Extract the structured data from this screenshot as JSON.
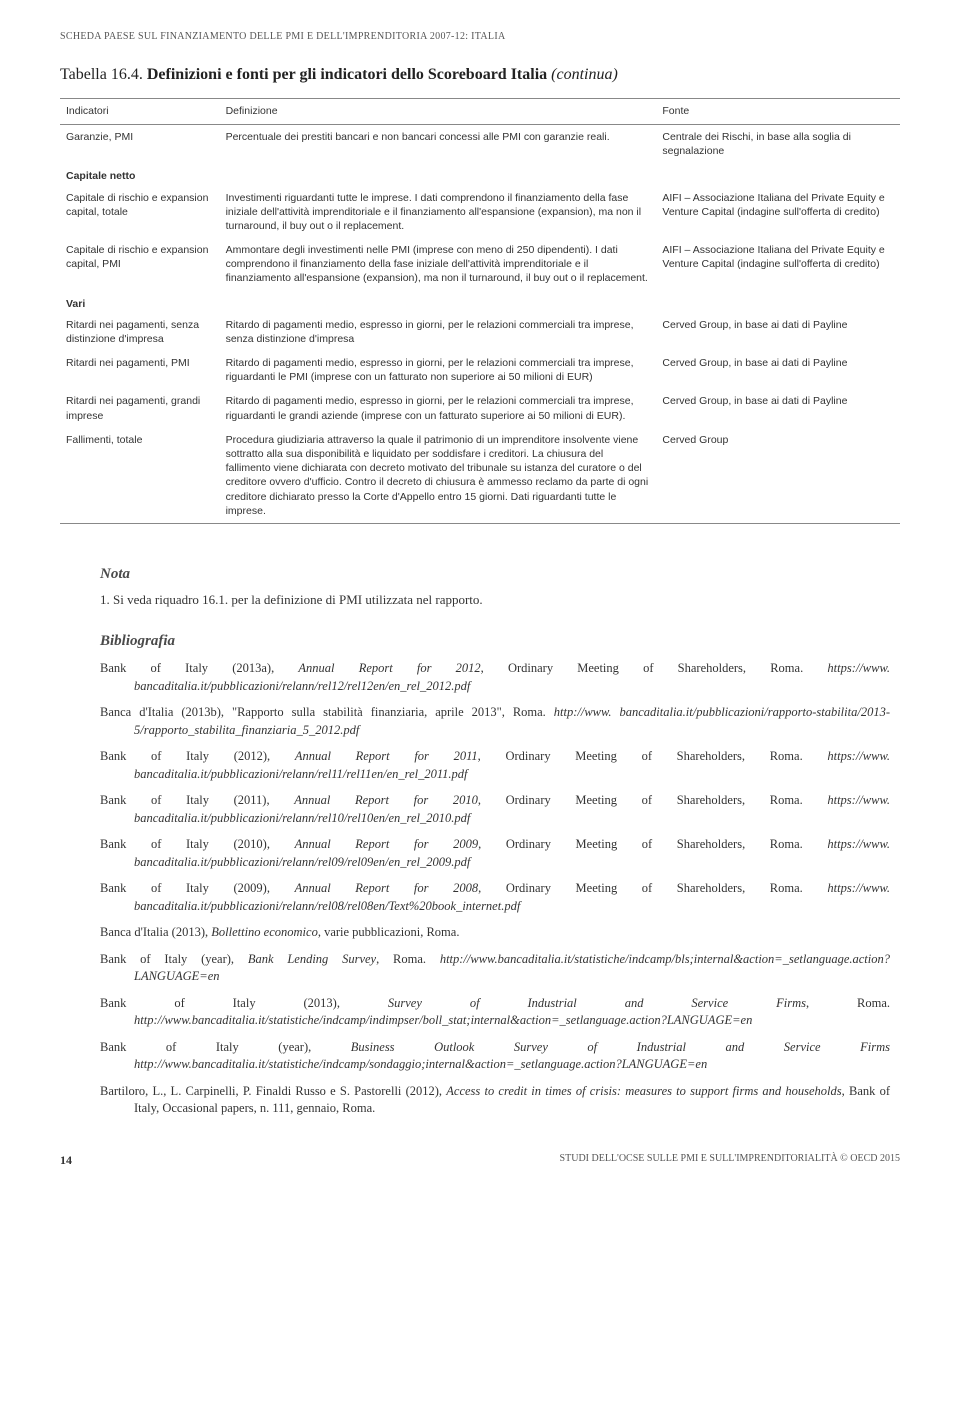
{
  "header": "SCHEDA PAESE SUL FINANZIAMENTO DELLE PMI E DELL'IMPRENDITORIA 2007-12: ITALIA",
  "table": {
    "title_prefix": "Tabella 16.4. ",
    "title_main": "Definizioni e fonti per gli indicatori dello Scoreboard Italia ",
    "title_suffix": "(continua)",
    "headers": {
      "c1": "Indicatori",
      "c2": "Definizione",
      "c3": "Fonte"
    },
    "rows": [
      {
        "c1": "Garanzie, PMI",
        "c2": "Percentuale dei prestiti bancari e non bancari concessi alle PMI con garanzie reali.",
        "c3": "Centrale dei Rischi, in base alla soglia di segnalazione"
      },
      {
        "section": "Capitale netto"
      },
      {
        "c1": "Capitale di rischio e expansion capital, totale",
        "c2": "Investimenti riguardanti tutte le imprese. I dati comprendono il finanziamento della fase iniziale dell'attività imprenditoriale e il finanziamento all'espansione (expansion), ma non il turnaround, il buy out o il replacement.",
        "c3": "AIFI – Associazione Italiana del Private Equity e Venture Capital (indagine sull'offerta di credito)"
      },
      {
        "c1": "Capitale di rischio e expansion capital, PMI",
        "c2": "Ammontare degli investimenti nelle PMI (imprese con meno di 250 dipendenti). I dati comprendono il finanziamento della fase iniziale dell'attività imprenditoriale e il finanziamento all'espansione (expansion), ma non il turnaround, il buy out o il replacement.",
        "c3": "AIFI – Associazione Italiana del Private Equity e Venture Capital (indagine sull'offerta di credito)"
      },
      {
        "section": "Vari"
      },
      {
        "c1": "Ritardi nei pagamenti, senza distinzione d'impresa",
        "c2": "Ritardo di pagamenti medio, espresso in giorni, per le relazioni commerciali tra imprese, senza distinzione d'impresa",
        "c3": "Cerved Group, in base ai dati di Payline"
      },
      {
        "c1": "Ritardi nei pagamenti, PMI",
        "c2": "Ritardo di pagamenti medio, espresso in giorni, per le relazioni commerciali tra imprese, riguardanti le PMI (imprese con un fatturato non superiore ai 50 milioni di EUR)",
        "c3": "Cerved Group, in base ai dati di Payline"
      },
      {
        "c1": "Ritardi nei pagamenti, grandi imprese",
        "c2": "Ritardo di pagamenti medio, espresso in giorni, per le relazioni commerciali tra imprese, riguardanti le grandi aziende (imprese con un fatturato superiore ai 50 milioni di EUR).",
        "c3": "Cerved Group, in base ai dati di Payline"
      },
      {
        "c1": "Fallimenti, totale",
        "c2": "Procedura giudiziaria attraverso la quale il patrimonio di un imprenditore insolvente viene sottratto alla sua disponibilità e liquidato per soddisfare i creditori. La chiusura del fallimento viene dichiarata con decreto motivato del tribunale su istanza del curatore o del creditore ovvero d'ufficio. Contro il decreto di chiusura è ammesso reclamo da parte di ogni creditore dichiarato presso la Corte d'Appello entro 15 giorni. Dati riguardanti tutte le imprese.",
        "c3": "Cerved Group"
      }
    ]
  },
  "nota": {
    "heading": "Nota",
    "text": "1. Si veda riquadro 16.1. per la definizione di PMI utilizzata nel rapporto."
  },
  "biblio": {
    "heading": "Bibliografia",
    "items": [
      {
        "pre": "Bank of Italy (2013a), ",
        "ital": "Annual Report for 2012",
        "post": ", Ordinary Meeting of Shareholders, Roma. ",
        "url": "https://www. bancaditalia.it/pubblicazioni/relann/rel12/rel12en/en_rel_2012.pdf"
      },
      {
        "pre": "Banca d'Italia (2013b), \"Rapporto sulla stabilità finanziaria, aprile 2013\", Roma. ",
        "ital": "",
        "post": "",
        "url": "http://www. bancaditalia.it/pubblicazioni/rapporto-stabilita/2013-5/rapporto_stabilita_finanziaria_5_2012.pdf"
      },
      {
        "pre": "Bank of Italy (2012), ",
        "ital": "Annual Report for 2011",
        "post": ", Ordinary Meeting of Shareholders, Roma. ",
        "url": "https://www. bancaditalia.it/pubblicazioni/relann/rel11/rel11en/en_rel_2011.pdf"
      },
      {
        "pre": "Bank of Italy (2011), ",
        "ital": "Annual Report for 2010",
        "post": ", Ordinary Meeting of Shareholders, Roma. ",
        "url": "https://www. bancaditalia.it/pubblicazioni/relann/rel10/rel10en/en_rel_2010.pdf"
      },
      {
        "pre": "Bank of Italy (2010), ",
        "ital": "Annual Report for 2009",
        "post": ", Ordinary Meeting of Shareholders, Roma. ",
        "url": "https://www. bancaditalia.it/pubblicazioni/relann/rel09/rel09en/en_rel_2009.pdf"
      },
      {
        "pre": "Bank of Italy (2009), ",
        "ital": "Annual Report for 2008",
        "post": ", Ordinary Meeting of Shareholders, Roma. ",
        "url": "https://www. bancaditalia.it/pubblicazioni/relann/rel08/rel08en/Text%20book_internet.pdf"
      },
      {
        "pre": "Banca d'Italia (2013), ",
        "ital": "Bollettino economico",
        "post": ", varie pubblicazioni, Roma.",
        "url": ""
      },
      {
        "pre": "Bank of Italy (year), ",
        "ital": "Bank Lending Survey",
        "post": ", Roma. ",
        "url": "http://www.bancaditalia.it/statistiche/indcamp/bls;internal&action=_setlanguage.action?LANGUAGE=en"
      },
      {
        "pre": "Bank of Italy (2013), ",
        "ital": "Survey of Industrial and Service Firms",
        "post": ", Roma. ",
        "url": "http://www.bancaditalia.it/statistiche/indcamp/indimpser/boll_stat;internal&action=_setlanguage.action?LANGUAGE=en"
      },
      {
        "pre": "Bank of Italy (year), ",
        "ital": "Business Outlook Survey of Industrial and Service Firms ",
        "post": "",
        "url": "http://www.bancaditalia.it/statistiche/indcamp/sondaggio;internal&action=_setlanguage.action?LANGUAGE=en"
      },
      {
        "pre": "Bartiloro, L., L. Carpinelli, P. Finaldi Russo e S. Pastorelli (2012), ",
        "ital": "Access to credit in times of crisis: measures to support firms and households",
        "post": ", Bank of Italy, Occasional papers, n. 111, gennaio, Roma.",
        "url": ""
      }
    ]
  },
  "footer": {
    "page": "14",
    "right": "STUDI DELL'OCSE SULLE PMI E SULL'IMPRENDITORIALITÀ © OECD 2015"
  }
}
